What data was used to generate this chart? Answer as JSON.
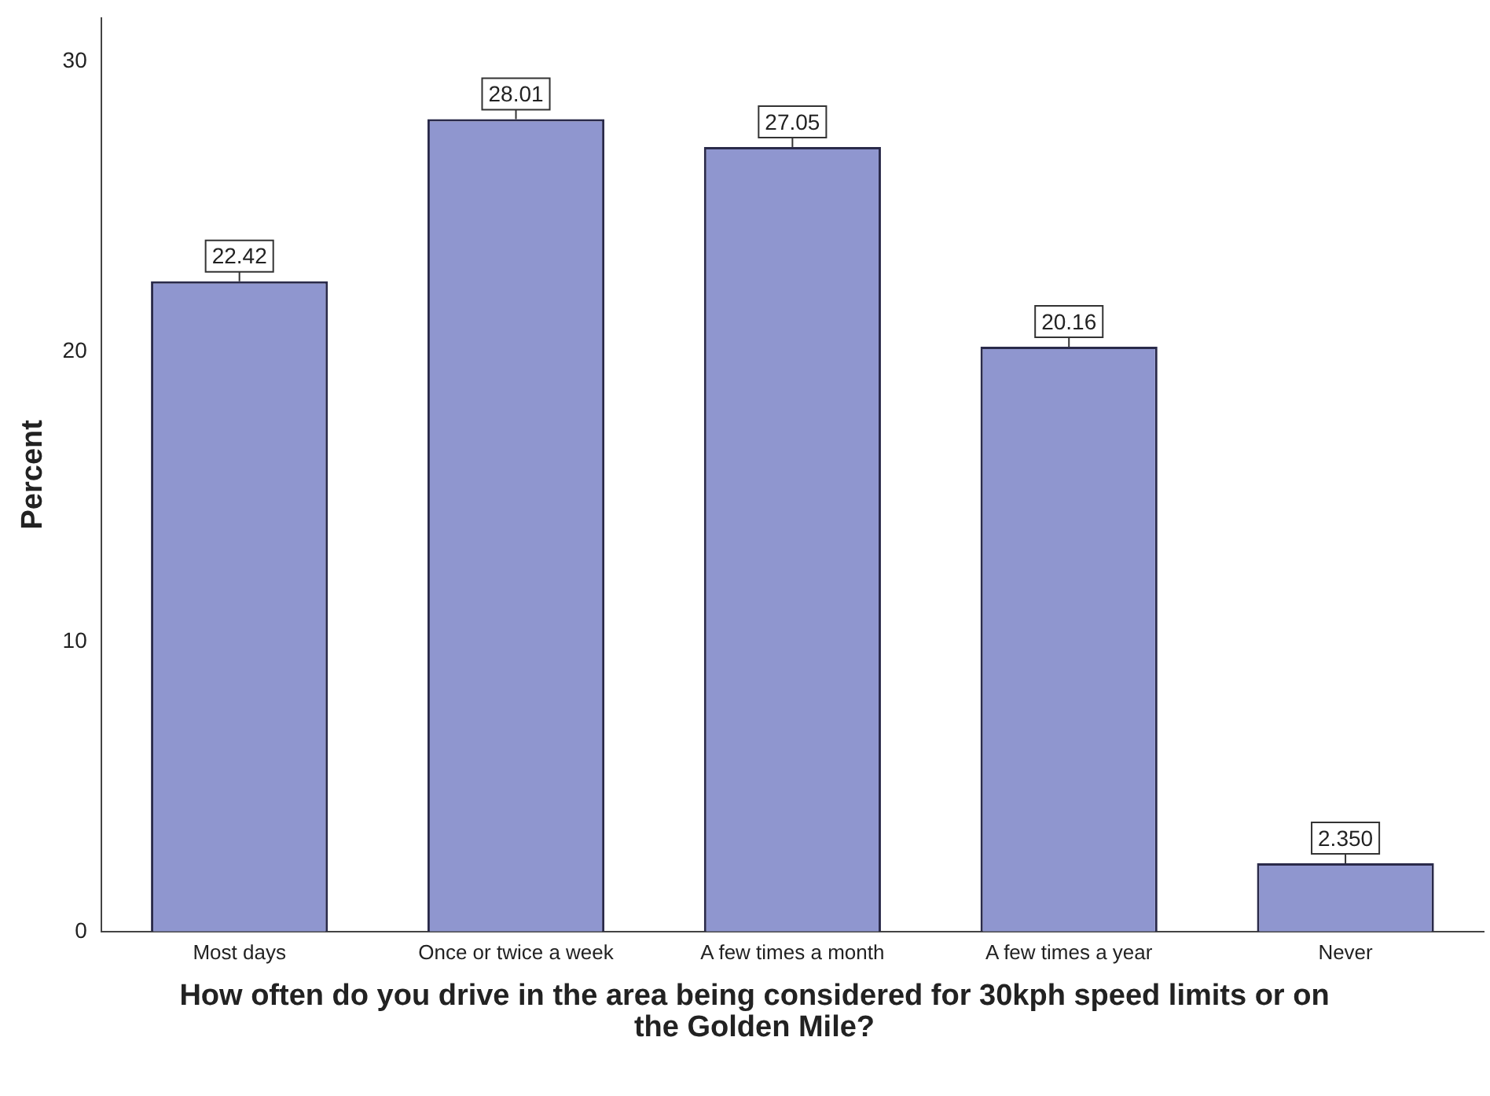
{
  "chart_data": {
    "type": "bar",
    "xlabel": "How often do you drive in the area being considered for 30kph speed limits or on the Golden Mile?",
    "ylabel": "Percent",
    "categories": [
      "Most days",
      "Once or twice a week",
      "A few times a month",
      "A few times a year",
      "Never"
    ],
    "values": [
      22.42,
      28.01,
      27.05,
      20.16,
      2.35
    ],
    "value_labels": [
      "22.42",
      "28.01",
      "27.05",
      "20.16",
      "2.350"
    ],
    "color": "#8f96cf",
    "ylim": [
      0,
      31.5
    ],
    "yticks": [
      0,
      10,
      20,
      30
    ],
    "grid": false,
    "legend": false
  }
}
